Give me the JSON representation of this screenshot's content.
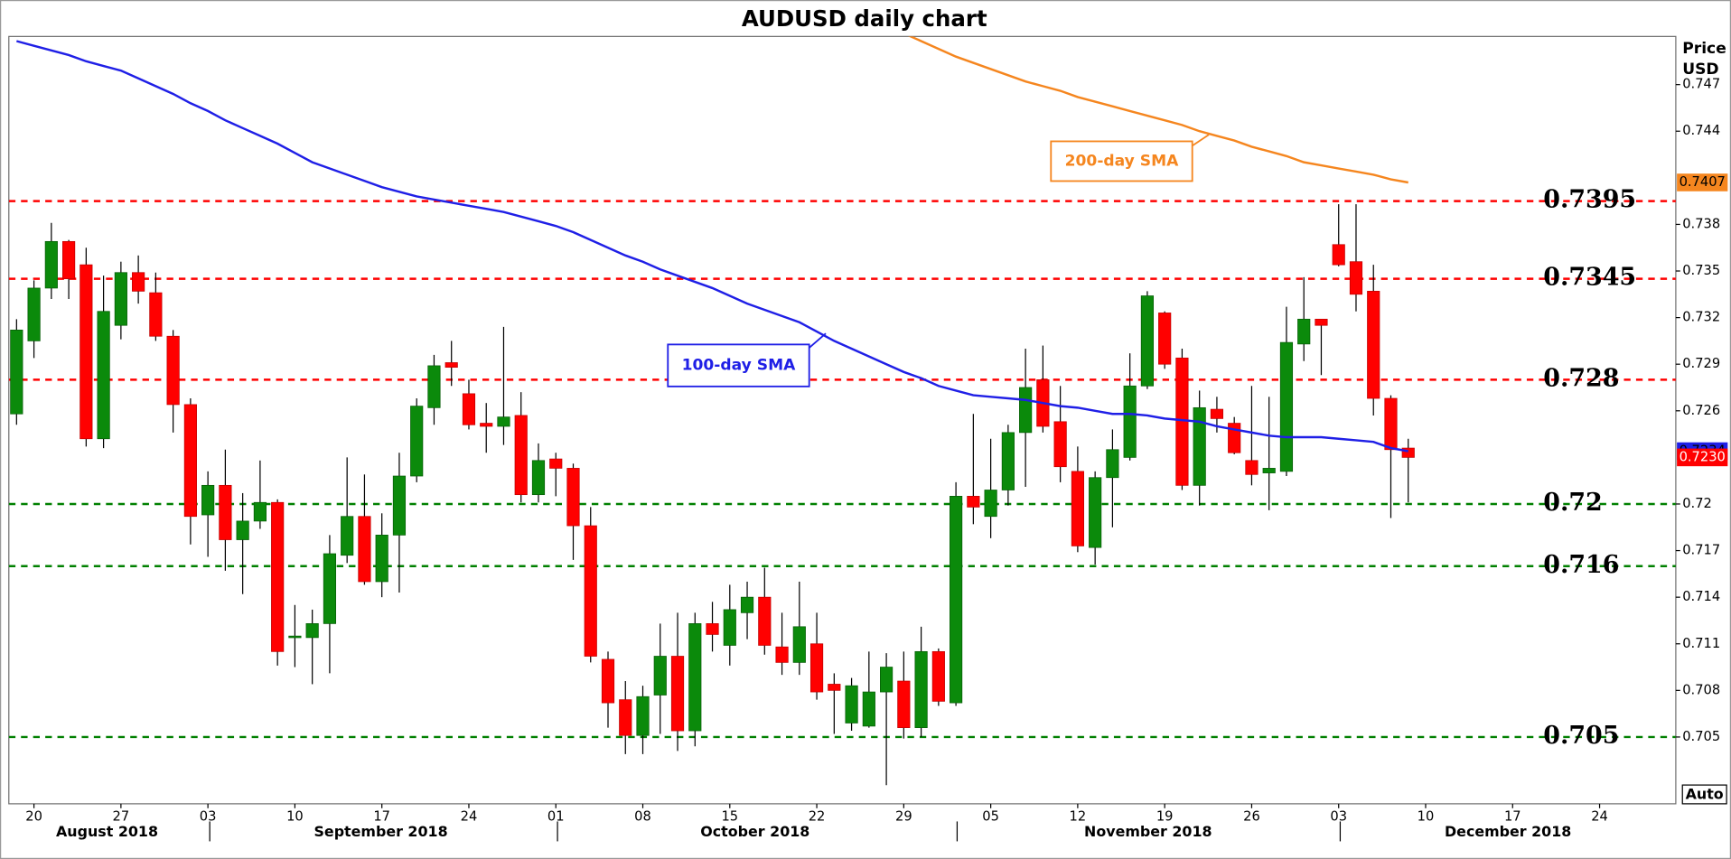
{
  "chart_data": {
    "type": "candlestick",
    "title": "AUDUSD daily chart",
    "y_label": [
      "Price",
      "USD"
    ],
    "categories": [
      null,
      "20",
      null,
      null,
      null,
      null,
      "27",
      null,
      null,
      null,
      null,
      "03",
      null,
      null,
      null,
      null,
      "10",
      null,
      null,
      null,
      null,
      "17",
      null,
      null,
      null,
      null,
      "24",
      null,
      null,
      null,
      null,
      "01",
      null,
      null,
      null,
      null,
      "08",
      null,
      null,
      null,
      null,
      "15",
      null,
      null,
      null,
      null,
      "22",
      null,
      null,
      null,
      null,
      "29",
      null,
      null,
      null,
      null,
      "05",
      null,
      null,
      null,
      null,
      "12",
      null,
      null,
      null,
      null,
      "19",
      null,
      null,
      null,
      null,
      "26",
      null,
      null,
      null,
      null,
      "03",
      null,
      null,
      null,
      null,
      "10",
      null,
      null,
      null,
      null,
      "17",
      null,
      null,
      null,
      null,
      "24",
      null,
      null,
      null,
      null
    ],
    "months": [
      "August 2018",
      "September 2018",
      "October 2018",
      "November 2018",
      "December 2018"
    ],
    "open": [
      0.7258,
      0.7305,
      0.7339,
      0.7369,
      0.7354,
      0.7242,
      0.7315,
      0.7349,
      0.7336,
      0.7308,
      0.7264,
      0.7193,
      0.7212,
      0.7177,
      0.7189,
      0.7201,
      0.7114,
      0.7114,
      0.7123,
      0.7167,
      0.7192,
      0.715,
      0.718,
      0.7218,
      0.7262,
      0.7291,
      0.7271,
      0.7252,
      0.725,
      0.7257,
      0.7206,
      0.7229,
      0.7223,
      0.7186,
      0.71,
      0.7074,
      0.7051,
      0.7077,
      0.7102,
      0.7054,
      0.7123,
      0.7109,
      0.713,
      0.714,
      0.7108,
      0.7098,
      0.711,
      0.7084,
      0.7059,
      0.7057,
      0.7079,
      0.7086,
      0.7056,
      0.7105,
      0.7072,
      0.7205,
      0.7192,
      0.7209,
      0.7246,
      0.728,
      0.7253,
      0.7221,
      0.7172,
      0.7217,
      0.723,
      0.7276,
      0.7323,
      0.7294,
      0.7212,
      0.7261,
      0.7252,
      0.7228,
      0.722,
      0.7221,
      0.7303,
      0.7319,
      0.7367,
      0.7356,
      0.7337,
      0.7268,
      0.7236,
      null,
      null,
      null,
      null,
      null,
      null,
      null,
      null,
      null,
      null,
      null,
      null,
      null,
      null,
      null
    ],
    "high": [
      0.7319,
      0.7344,
      0.7381,
      0.737,
      0.7365,
      0.7347,
      0.7356,
      0.736,
      0.7349,
      0.7312,
      0.7268,
      0.7221,
      0.7235,
      0.7207,
      0.7228,
      0.7203,
      0.7135,
      0.7132,
      0.718,
      0.723,
      0.7219,
      0.7194,
      0.7233,
      0.7268,
      0.7296,
      0.7305,
      0.728,
      0.7265,
      0.7314,
      0.7272,
      0.7239,
      0.7233,
      0.7226,
      0.7198,
      0.7105,
      0.7086,
      0.7083,
      0.7123,
      0.713,
      0.713,
      0.7137,
      0.7148,
      0.715,
      0.7159,
      0.713,
      0.715,
      0.713,
      0.7091,
      0.7088,
      0.7105,
      0.7104,
      0.7105,
      0.7121,
      0.7107,
      0.7214,
      0.7258,
      0.7242,
      0.7251,
      0.73,
      0.7302,
      0.7276,
      0.7237,
      0.7221,
      0.7248,
      0.7297,
      0.7337,
      0.7324,
      0.73,
      0.7273,
      0.7269,
      0.7256,
      0.7276,
      0.7269,
      0.7327,
      0.7346,
      0.7319,
      0.7393,
      0.7393,
      0.7354,
      0.727,
      0.7242,
      null,
      null,
      null,
      null,
      null,
      null,
      null,
      null,
      null,
      null,
      null,
      null,
      null,
      null,
      null
    ],
    "low": [
      0.7251,
      0.7294,
      0.7332,
      0.7332,
      0.7237,
      0.7236,
      0.7306,
      0.7329,
      0.7305,
      0.7246,
      0.7174,
      0.7166,
      0.7157,
      0.7142,
      0.7184,
      0.7096,
      0.7095,
      0.7084,
      0.7091,
      0.7162,
      0.7148,
      0.714,
      0.7143,
      0.7214,
      0.7251,
      0.7276,
      0.7248,
      0.7233,
      0.7238,
      0.7201,
      0.7201,
      0.7205,
      0.7164,
      0.7098,
      0.7056,
      0.7039,
      0.7039,
      0.7052,
      0.7041,
      0.7044,
      0.7105,
      0.7096,
      0.7113,
      0.7103,
      0.709,
      0.709,
      0.7074,
      0.7052,
      0.7054,
      0.7056,
      0.7019,
      0.7049,
      0.705,
      0.707,
      0.707,
      0.7187,
      0.7178,
      0.7199,
      0.7211,
      0.7246,
      0.7214,
      0.7169,
      0.7161,
      0.7185,
      0.7228,
      0.7274,
      0.7287,
      0.7209,
      0.7199,
      0.7246,
      0.7232,
      0.7212,
      0.7196,
      0.7218,
      0.7292,
      0.7283,
      0.7353,
      0.7324,
      0.7257,
      0.7191,
      0.7201,
      null,
      null,
      null,
      null,
      null,
      null,
      null,
      null,
      null,
      null,
      null,
      null,
      null,
      null,
      null
    ],
    "close": [
      0.7312,
      0.7339,
      0.7369,
      0.7345,
      0.7242,
      0.7324,
      0.7349,
      0.7337,
      0.7308,
      0.7264,
      0.7192,
      0.7212,
      0.7177,
      0.7189,
      0.7201,
      0.7105,
      0.7115,
      0.7123,
      0.7168,
      0.7192,
      0.715,
      0.718,
      0.7218,
      0.7263,
      0.7289,
      0.7288,
      0.7251,
      0.725,
      0.7256,
      0.7206,
      0.7228,
      0.7223,
      0.7186,
      0.7102,
      0.7072,
      0.7051,
      0.7076,
      0.7102,
      0.7054,
      0.7123,
      0.7116,
      0.7132,
      0.714,
      0.7109,
      0.7098,
      0.7121,
      0.7079,
      0.708,
      0.7083,
      0.7079,
      0.7095,
      0.7056,
      0.7105,
      0.7073,
      0.7205,
      0.7198,
      0.7209,
      0.7246,
      0.7275,
      0.725,
      0.7224,
      0.7173,
      0.7217,
      0.7235,
      0.7276,
      0.7334,
      0.729,
      0.7212,
      0.7262,
      0.7255,
      0.7233,
      0.7219,
      0.7223,
      0.7304,
      0.7319,
      0.7315,
      0.7354,
      0.7335,
      0.7268,
      0.7235,
      0.723,
      null,
      null,
      null,
      null,
      null,
      null,
      null,
      null,
      null,
      null,
      null,
      null,
      null,
      null,
      null
    ],
    "up_color": "#0b8a0b",
    "down_color": "#ff0000",
    "overlays": [
      {
        "name": "100-day SMA",
        "color": "#1f1fe6",
        "values": [
          0.7498,
          0.7495,
          0.7492,
          0.7489,
          0.7485,
          0.7482,
          0.7479,
          0.7474,
          0.7469,
          0.7464,
          0.7458,
          0.7453,
          0.7447,
          0.7442,
          0.7437,
          0.7432,
          0.7426,
          0.742,
          0.7416,
          0.7412,
          0.7408,
          0.7404,
          0.7401,
          0.7398,
          0.7396,
          0.7394,
          0.7392,
          0.739,
          0.7388,
          0.7385,
          0.7382,
          0.7379,
          0.7375,
          0.737,
          0.7365,
          0.736,
          0.7356,
          0.7351,
          0.7347,
          0.7343,
          0.7339,
          0.7334,
          0.7329,
          0.7325,
          0.7321,
          0.7317,
          0.7311,
          0.7305,
          0.73,
          0.7295,
          0.729,
          0.7285,
          0.7281,
          0.7276,
          0.7273,
          0.727,
          0.7269,
          0.7268,
          0.7267,
          0.7265,
          0.7263,
          0.7262,
          0.726,
          0.7258,
          0.7258,
          0.7257,
          0.7255,
          0.7254,
          0.7253,
          0.725,
          0.7248,
          0.7246,
          0.7244,
          0.7243,
          0.7243,
          0.7243,
          0.7242,
          0.7241,
          0.724,
          0.7236,
          0.7234,
          null,
          null,
          null,
          null,
          null,
          null,
          null,
          null,
          null,
          null,
          null,
          null,
          null,
          null,
          null
        ]
      },
      {
        "name": "200-day SMA",
        "color": "#f5861f",
        "values": [
          null,
          null,
          null,
          null,
          null,
          null,
          null,
          null,
          null,
          null,
          null,
          null,
          null,
          null,
          null,
          null,
          null,
          null,
          null,
          null,
          null,
          null,
          null,
          null,
          null,
          null,
          null,
          null,
          null,
          null,
          null,
          null,
          null,
          null,
          null,
          null,
          null,
          null,
          null,
          null,
          null,
          null,
          null,
          null,
          null,
          null,
          null,
          null,
          null,
          null,
          null,
          0.7503,
          0.7498,
          0.7493,
          0.7488,
          0.7484,
          0.748,
          0.7476,
          0.7472,
          0.7469,
          0.7466,
          0.7462,
          0.7459,
          0.7456,
          0.7453,
          0.745,
          0.7447,
          0.7444,
          0.744,
          0.7437,
          0.7434,
          0.743,
          0.7427,
          0.7424,
          0.742,
          0.7418,
          0.7416,
          0.7414,
          0.7412,
          0.7409,
          0.7407,
          null,
          null,
          null,
          null,
          null,
          null,
          null,
          null,
          null,
          null,
          null,
          null,
          null,
          null,
          null
        ]
      }
    ],
    "levels": [
      {
        "value": 0.7395,
        "color": "#ff0000"
      },
      {
        "value": 0.7345,
        "color": "#ff0000"
      },
      {
        "value": 0.728,
        "color": "#ff0000"
      },
      {
        "value": 0.72,
        "color": "#008000"
      },
      {
        "value": 0.716,
        "color": "#008000"
      },
      {
        "value": 0.705,
        "color": "#008000"
      }
    ],
    "last_price": {
      "value": 0.723,
      "label": "0.7230"
    },
    "ylim": [
      0.7007,
      0.7501
    ],
    "yticks": [
      0.705,
      0.708,
      0.711,
      0.714,
      0.717,
      0.72,
      0.726,
      0.729,
      0.732,
      0.735,
      0.738,
      0.744,
      0.747
    ],
    "auto_button": "Auto"
  }
}
